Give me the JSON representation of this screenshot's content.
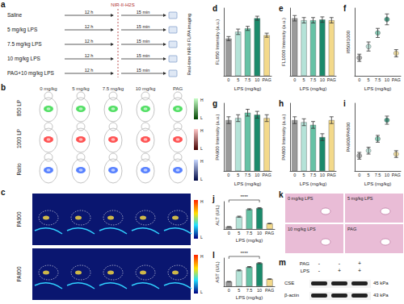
{
  "chart_data": [
    {
      "title": "d",
      "type": "bar",
      "categories": [
        "0",
        "5",
        "7.5",
        "10",
        "PAG"
      ],
      "values": [
        0.55,
        0.65,
        0.7,
        0.85,
        0.6
      ],
      "errors": [
        0.03,
        0.04,
        0.03,
        0.03,
        0.03
      ],
      "colors": [
        "#9a9a9a",
        "#b5e3d8",
        "#66c2a5",
        "#1b8a6b",
        "#f3d98a"
      ],
      "xlabel": "LPS (mg/kg)",
      "ylabel": "FL850 Intensity (a.u.)",
      "ylim": [
        0,
        1
      ],
      "tick_labels": "x"
    },
    {
      "title": "e",
      "type": "bar",
      "categories": [
        "0",
        "5",
        "7.5",
        "10",
        "PAG"
      ],
      "values": [
        0.85,
        0.82,
        0.82,
        0.83,
        0.82
      ],
      "errors": [
        0.04,
        0.04,
        0.04,
        0.04,
        0.04
      ],
      "colors": [
        "#9a9a9a",
        "#b5e3d8",
        "#66c2a5",
        "#1b8a6b",
        "#f3d98a"
      ],
      "xlabel": "LPS (mg/kg)",
      "ylabel": "FL1000 Intensity (a.u.)",
      "ylim": [
        0,
        1
      ],
      "tick_labels": "x"
    },
    {
      "title": "f",
      "type": "scatter",
      "categories": [
        "0",
        "5",
        "7.5",
        "10",
        "PAG"
      ],
      "values": [
        0.9,
        1.15,
        1.45,
        1.75,
        1.0
      ],
      "errors": [
        0.08,
        0.1,
        0.1,
        0.12,
        0.08
      ],
      "colors": [
        "#9a9a9a",
        "#b5e3d8",
        "#66c2a5",
        "#1b8a6b",
        "#f3d98a"
      ],
      "xlabel": "LPS (mg/kg)",
      "ylabel": "I850/I1000",
      "ylim": [
        0.5,
        2
      ],
      "tick_labels": "x"
    },
    {
      "title": "g",
      "type": "bar",
      "categories": [
        "0",
        "5",
        "7.5",
        "10",
        "PAG"
      ],
      "values": [
        0.75,
        0.78,
        0.86,
        0.83,
        0.78
      ],
      "errors": [
        0.05,
        0.05,
        0.05,
        0.05,
        0.05
      ],
      "colors": [
        "#9a9a9a",
        "#b5e3d8",
        "#66c2a5",
        "#1b8a6b",
        "#f3d98a"
      ],
      "xlabel": "LPS (mg/kg)",
      "ylabel": "PA900 Intensity (a.u.)",
      "ylim": [
        0,
        1
      ],
      "tick_labels": "x"
    },
    {
      "title": "h",
      "type": "bar",
      "categories": [
        "0",
        "5",
        "7.5",
        "10",
        "PAG"
      ],
      "values": [
        0.75,
        0.72,
        0.68,
        0.5,
        0.75
      ],
      "errors": [
        0.05,
        0.05,
        0.05,
        0.05,
        0.05
      ],
      "colors": [
        "#9a9a9a",
        "#b5e3d8",
        "#66c2a5",
        "#1b8a6b",
        "#f3d98a"
      ],
      "xlabel": "LPS (mg/kg)",
      "ylabel": "PA800 Intensity (a.u.)",
      "ylim": [
        0,
        1
      ],
      "tick_labels": "x"
    },
    {
      "title": "i",
      "type": "scatter",
      "categories": [
        "0",
        "5",
        "7.5",
        "10",
        "PAG"
      ],
      "values": [
        0.95,
        1.1,
        1.45,
        2.0,
        1.0
      ],
      "errors": [
        0.1,
        0.1,
        0.1,
        0.12,
        0.1
      ],
      "colors": [
        "#9a9a9a",
        "#b5e3d8",
        "#66c2a5",
        "#1b8a6b",
        "#f3d98a"
      ],
      "xlabel": "LPS (mg/kg)",
      "ylabel": "PA900/PA800",
      "ylim": [
        0.5,
        2.5
      ],
      "tick_labels": "x"
    },
    {
      "title": "j",
      "type": "bar",
      "categories": [
        "0",
        "5",
        "7.5",
        "10",
        "PAG"
      ],
      "values": [
        8,
        45,
        72,
        76,
        20
      ],
      "errors": [
        1,
        2,
        2,
        2,
        1
      ],
      "colors": [
        "#9a9a9a",
        "#b5e3d8",
        "#66c2a5",
        "#1b8a6b",
        "#f3d98a"
      ],
      "xlabel": "LPS (mg/kg)",
      "ylabel": "ALT (U/L)",
      "ylim": [
        0,
        100
      ],
      "tick_labels": "x",
      "annotation": "****"
    },
    {
      "title": "l",
      "type": "bar",
      "categories": [
        "0",
        "5",
        "7.5",
        "10",
        "PAG"
      ],
      "values": [
        18,
        62,
        75,
        90,
        28
      ],
      "errors": [
        1,
        2,
        2,
        2,
        1
      ],
      "colors": [
        "#9a9a9a",
        "#b5e3d8",
        "#66c2a5",
        "#1b8a6b",
        "#f3d98a"
      ],
      "xlabel": "LPS (mg/kg)",
      "ylabel": "AST (U/L)",
      "ylim": [
        0,
        110
      ],
      "tick_labels": "x",
      "annotation": "****"
    }
  ],
  "panels": {
    "a": {
      "label": "a",
      "groups": [
        "Saline",
        "5 mg/kg LPS",
        "7.5 mg/kg LPS",
        "10 mg/kg LPS",
        "PAG+10 mg/kg LPS"
      ],
      "interval": "12 h",
      "probe": "NIR-II-H2S",
      "imaging_time": "15 min",
      "readout": "Real-time NIR-II FL/PA imaging"
    },
    "b": {
      "label": "b",
      "columns": [
        "0 mg/kg",
        "5 mg/kg",
        "7.5 mg/kg",
        "10 mg/kg",
        "PAG"
      ],
      "rows": [
        "850 LP",
        "1000 LP",
        "Ratio"
      ],
      "scale": [
        "H",
        "L"
      ]
    },
    "c": {
      "label": "c",
      "rows": [
        "PA900",
        "PA800"
      ],
      "scale": [
        "H",
        "L"
      ]
    },
    "k": {
      "label": "k",
      "images": [
        "0 mg/kg LPS",
        "5 mg/kg LPS",
        "10 mg/kg LPS",
        "PAG"
      ]
    },
    "m": {
      "label": "m",
      "rows": [
        {
          "name": "PAG",
          "signs": [
            "-",
            "-",
            "+"
          ]
        },
        {
          "name": "LPS",
          "signs": [
            "-",
            "+",
            "+"
          ]
        }
      ],
      "bands": [
        {
          "name": "CSE",
          "size": "45 kPa"
        },
        {
          "name": "β-actin",
          "size": "43 kPa"
        }
      ]
    }
  }
}
